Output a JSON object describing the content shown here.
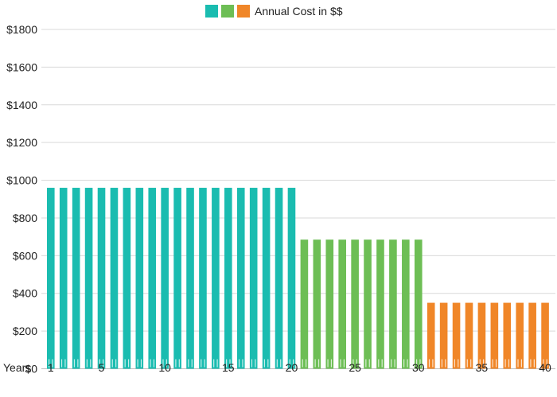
{
  "chart_data": {
    "type": "bar",
    "legend": {
      "label": "Annual Cost in $$",
      "swatch_colors": [
        "#1abcb0",
        "#6dbe55",
        "#f08628"
      ],
      "position": "top-center"
    },
    "xlabel": "Years",
    "ylabel": "",
    "ylim": [
      0,
      1800
    ],
    "y_ticks": [
      0,
      200,
      400,
      600,
      800,
      1000,
      1200,
      1400,
      1600,
      1800
    ],
    "y_tick_prefix": "$",
    "x_tick_labels": [
      1,
      5,
      10,
      15,
      20,
      25,
      30,
      35,
      40
    ],
    "grid": true,
    "categories": [
      1,
      2,
      3,
      4,
      5,
      6,
      7,
      8,
      9,
      10,
      11,
      12,
      13,
      14,
      15,
      16,
      17,
      18,
      19,
      20,
      21,
      22,
      23,
      24,
      25,
      26,
      27,
      28,
      29,
      30,
      31,
      32,
      33,
      34,
      35,
      36,
      37,
      38,
      39,
      40
    ],
    "values": [
      960,
      960,
      960,
      960,
      960,
      960,
      960,
      960,
      960,
      960,
      960,
      960,
      960,
      960,
      960,
      960,
      960,
      960,
      960,
      960,
      685,
      685,
      685,
      685,
      685,
      685,
      685,
      685,
      685,
      685,
      350,
      350,
      350,
      350,
      350,
      350,
      350,
      350,
      350,
      350
    ],
    "segments": [
      {
        "from_year": 1,
        "to_year": 20,
        "color": "#1abcb0"
      },
      {
        "from_year": 21,
        "to_year": 30,
        "color": "#6dbe55"
      },
      {
        "from_year": 31,
        "to_year": 40,
        "color": "#f08628"
      }
    ]
  }
}
